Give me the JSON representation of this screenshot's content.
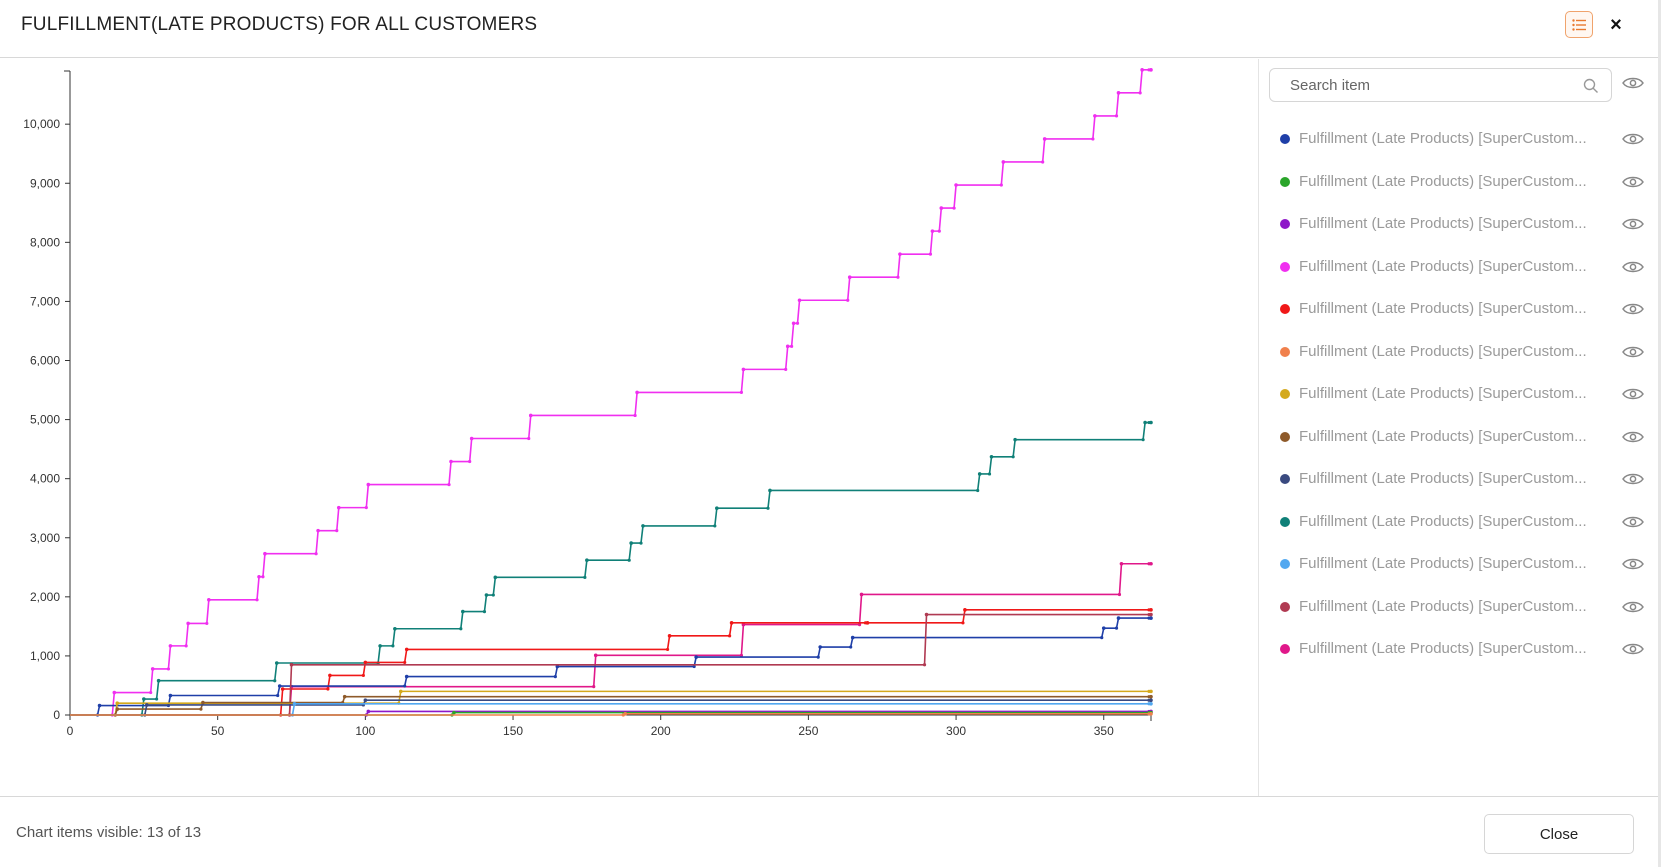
{
  "header": {
    "title": "FULFILLMENT(LATE PRODUCTS) FOR ALL CUSTOMERS",
    "legend_toggle_icon": "list-icon",
    "close_icon": "×"
  },
  "search": {
    "placeholder": "Search item"
  },
  "legend": {
    "items": [
      {
        "label": "Fulfillment (Late Products) [SuperCustom...",
        "color": "#1f3fa8"
      },
      {
        "label": "Fulfillment (Late Products) [SuperCustom...",
        "color": "#2aa52a"
      },
      {
        "label": "Fulfillment (Late Products) [SuperCustom...",
        "color": "#8e18c8"
      },
      {
        "label": "Fulfillment (Late Products) [SuperCustom...",
        "color": "#f02ff0"
      },
      {
        "label": "Fulfillment (Late Products) [SuperCustom...",
        "color": "#f01818"
      },
      {
        "label": "Fulfillment (Late Products) [SuperCustom...",
        "color": "#f0804c"
      },
      {
        "label": "Fulfillment (Late Products) [SuperCustom...",
        "color": "#d4a91c"
      },
      {
        "label": "Fulfillment (Late Products) [SuperCustom...",
        "color": "#8e5a2a"
      },
      {
        "label": "Fulfillment (Late Products) [SuperCustom...",
        "color": "#3a4a80"
      },
      {
        "label": "Fulfillment (Late Products) [SuperCustom...",
        "color": "#108078"
      },
      {
        "label": "Fulfillment (Late Products) [SuperCustom...",
        "color": "#52a8f0"
      },
      {
        "label": "Fulfillment (Late Products) [SuperCustom...",
        "color": "#b03a52"
      },
      {
        "label": "Fulfillment (Late Products) [SuperCustom...",
        "color": "#e0188a"
      }
    ]
  },
  "footer": {
    "visible_count": "Chart items visible: 13 of 13",
    "close_label": "Close"
  },
  "chart_data": {
    "type": "line",
    "title": "",
    "xlabel": "",
    "ylabel": "",
    "xlim": [
      0,
      366
    ],
    "ylim": [
      0,
      10900
    ],
    "x_ticks": [
      0,
      50,
      100,
      150,
      200,
      250,
      300,
      350
    ],
    "x_tick_labels": [
      "0",
      "50",
      "100",
      "150",
      "200",
      "250",
      "300",
      "350"
    ],
    "y_ticks": [
      0,
      1000,
      2000,
      3000,
      4000,
      5000,
      6000,
      7000,
      8000,
      9000,
      10000
    ],
    "y_tick_labels": [
      "0",
      "1,000",
      "2,000",
      "3,000",
      "4,000",
      "5,000",
      "6,000",
      "7,000",
      "8,000",
      "9,000",
      "10,000"
    ],
    "grid": false,
    "step": true,
    "series": [
      {
        "color": "#f02ff0",
        "points": [
          [
            0,
            0
          ],
          [
            15,
            380
          ],
          [
            28,
            780
          ],
          [
            34,
            1170
          ],
          [
            40,
            1550
          ],
          [
            47,
            1950
          ],
          [
            64,
            2340
          ],
          [
            66,
            2730
          ],
          [
            84,
            3120
          ],
          [
            91,
            3510
          ],
          [
            101,
            3900
          ],
          [
            129,
            4290
          ],
          [
            136,
            4680
          ],
          [
            156,
            5070
          ],
          [
            192,
            5460
          ],
          [
            228,
            5850
          ],
          [
            243,
            6240
          ],
          [
            245,
            6630
          ],
          [
            247,
            7020
          ],
          [
            264,
            7410
          ],
          [
            281,
            7800
          ],
          [
            292,
            8190
          ],
          [
            295,
            8580
          ],
          [
            300,
            8970
          ],
          [
            316,
            9360
          ],
          [
            330,
            9750
          ],
          [
            347,
            10140
          ],
          [
            355,
            10530
          ],
          [
            363,
            10920
          ],
          [
            366,
            10920
          ]
        ]
      },
      {
        "color": "#108078",
        "points": [
          [
            0,
            0
          ],
          [
            25,
            270
          ],
          [
            30,
            580
          ],
          [
            70,
            880
          ],
          [
            105,
            1170
          ],
          [
            110,
            1460
          ],
          [
            133,
            1750
          ],
          [
            141,
            2030
          ],
          [
            144,
            2330
          ],
          [
            175,
            2620
          ],
          [
            190,
            2910
          ],
          [
            194,
            3200
          ],
          [
            219,
            3500
          ],
          [
            237,
            3800
          ],
          [
            308,
            4080
          ],
          [
            312,
            4370
          ],
          [
            320,
            4660
          ],
          [
            364,
            4950
          ],
          [
            366,
            4950
          ]
        ]
      },
      {
        "color": "#e0188a",
        "points": [
          [
            0,
            0
          ],
          [
            75,
            480
          ],
          [
            178,
            1010
          ],
          [
            228,
            1530
          ],
          [
            268,
            2040
          ],
          [
            356,
            2560
          ],
          [
            366,
            2560
          ]
        ]
      },
      {
        "color": "#f01818",
        "points": [
          [
            0,
            0
          ],
          [
            72,
            440
          ],
          [
            88,
            670
          ],
          [
            100,
            890
          ],
          [
            114,
            1110
          ],
          [
            203,
            1340
          ],
          [
            224,
            1560
          ],
          [
            270,
            1560
          ],
          [
            303,
            1780
          ],
          [
            366,
            1780
          ]
        ]
      },
      {
        "color": "#1f3fa8",
        "points": [
          [
            0,
            0
          ],
          [
            10,
            160
          ],
          [
            34,
            330
          ],
          [
            71,
            490
          ],
          [
            114,
            650
          ],
          [
            165,
            820
          ],
          [
            212,
            980
          ],
          [
            254,
            1150
          ],
          [
            265,
            1310
          ],
          [
            350,
            1470
          ],
          [
            355,
            1640
          ],
          [
            366,
            1640
          ]
        ]
      },
      {
        "color": "#b03a52",
        "points": [
          [
            0,
            0
          ],
          [
            75,
            850
          ],
          [
            290,
            1700
          ],
          [
            366,
            1700
          ]
        ]
      },
      {
        "color": "#d4a91c",
        "points": [
          [
            0,
            0
          ],
          [
            16,
            200
          ],
          [
            112,
            400
          ],
          [
            366,
            400
          ]
        ]
      },
      {
        "color": "#8e5a2a",
        "points": [
          [
            0,
            0
          ],
          [
            16,
            100
          ],
          [
            45,
            210
          ],
          [
            93,
            310
          ],
          [
            366,
            310
          ]
        ]
      },
      {
        "color": "#3a4a80",
        "points": [
          [
            0,
            0
          ],
          [
            26,
            170
          ],
          [
            100,
            250
          ],
          [
            366,
            250
          ]
        ]
      },
      {
        "color": "#52a8f0",
        "points": [
          [
            0,
            0
          ],
          [
            76,
            190
          ],
          [
            366,
            190
          ]
        ]
      },
      {
        "color": "#8e18c8",
        "points": [
          [
            0,
            0
          ],
          [
            101,
            60
          ],
          [
            366,
            60
          ]
        ]
      },
      {
        "color": "#2aa52a",
        "points": [
          [
            0,
            0
          ],
          [
            130,
            40
          ],
          [
            366,
            40
          ]
        ]
      },
      {
        "color": "#f0804c",
        "points": [
          [
            0,
            0
          ],
          [
            188,
            20
          ],
          [
            366,
            20
          ]
        ]
      }
    ]
  }
}
